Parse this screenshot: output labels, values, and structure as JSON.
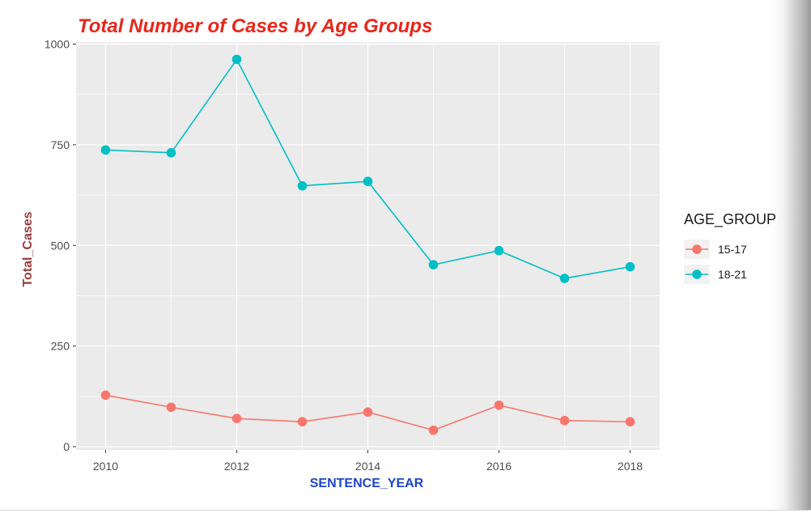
{
  "chart_data": {
    "type": "line",
    "title": "Total Number of Cases by Age Groups",
    "xlabel": "SENTENCE_YEAR",
    "ylabel": "Total_Cases",
    "x": [
      2010,
      2011,
      2012,
      2013,
      2014,
      2015,
      2016,
      2017,
      2018
    ],
    "x_ticks": [
      "2010",
      "2012",
      "2014",
      "2016",
      "2018"
    ],
    "y_ticks": [
      "0",
      "250",
      "500",
      "750",
      "1000"
    ],
    "xlim": [
      2009.55,
      2018.45
    ],
    "ylim": [
      -8,
      1005
    ],
    "grid": true,
    "legend_placement": "right",
    "legend_title": "AGE_GROUP",
    "series": [
      {
        "name": "15-17",
        "color": "#F8766D",
        "values": [
          128,
          98,
          70,
          62,
          86,
          41,
          103,
          65,
          62
        ]
      },
      {
        "name": "18-21",
        "color": "#00BFC4",
        "values": [
          737,
          730,
          962,
          648,
          659,
          452,
          487,
          418,
          447
        ]
      }
    ],
    "colors": {
      "title": "#e8261a",
      "xlabel": "#1f45c7",
      "ylabel": "#9a3a3a",
      "panel": "#ebebeb",
      "grid": "#ffffff"
    }
  }
}
